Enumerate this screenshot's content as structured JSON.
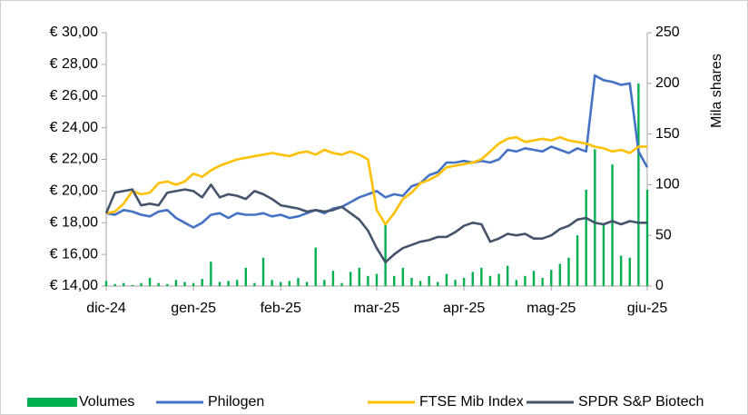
{
  "chart_data": {
    "type": "line",
    "categories": [
      "dic-24",
      null,
      null,
      null,
      null,
      null,
      null,
      null,
      null,
      null,
      "gen-25",
      null,
      null,
      null,
      null,
      null,
      null,
      null,
      null,
      null,
      "feb-25",
      null,
      null,
      null,
      null,
      null,
      null,
      null,
      null,
      null,
      null,
      "mar-25",
      null,
      null,
      null,
      null,
      null,
      null,
      null,
      null,
      null,
      "apr-25",
      null,
      null,
      null,
      null,
      null,
      null,
      null,
      null,
      null,
      "mag-25",
      null,
      null,
      null,
      null,
      null,
      null,
      null,
      null,
      null,
      null,
      "giu-25"
    ],
    "series": [
      {
        "name": "Volumes",
        "type": "bar",
        "axis": "y2",
        "color": "#00b050",
        "values": [
          5,
          2,
          3,
          1,
          3,
          8,
          3,
          2,
          6,
          4,
          3,
          7,
          24,
          4,
          5,
          6,
          18,
          3,
          28,
          6,
          4,
          5,
          8,
          4,
          38,
          6,
          15,
          3,
          14,
          18,
          10,
          12,
          62,
          10,
          18,
          8,
          5,
          10,
          4,
          12,
          6,
          8,
          14,
          18,
          10,
          12,
          20,
          6,
          10,
          15,
          8,
          16,
          22,
          28,
          50,
          95,
          135,
          60,
          120,
          30,
          28,
          200,
          95
        ]
      },
      {
        "name": "Philogen",
        "type": "line",
        "color": "#4472c4",
        "values": [
          18.6,
          18.5,
          18.8,
          18.7,
          18.5,
          18.4,
          18.7,
          18.8,
          18.3,
          18.0,
          17.7,
          18.0,
          18.5,
          18.6,
          18.3,
          18.6,
          18.5,
          18.5,
          18.6,
          18.4,
          18.5,
          18.3,
          18.4,
          18.6,
          18.8,
          18.6,
          18.9,
          19.0,
          19.3,
          19.6,
          19.8,
          20.0,
          19.6,
          19.8,
          19.7,
          20.3,
          20.5,
          21.0,
          21.2,
          21.8,
          21.8,
          21.9,
          21.8,
          21.9,
          21.8,
          22.0,
          22.6,
          22.5,
          22.7,
          22.6,
          22.5,
          22.8,
          22.6,
          22.4,
          22.7,
          22.5,
          27.3,
          27.0,
          26.9,
          26.7,
          26.8,
          22.5,
          21.5
        ]
      },
      {
        "name": "FTSE Mib Index",
        "type": "line",
        "color": "#ffc000",
        "values": [
          18.6,
          18.7,
          19.2,
          20.0,
          19.8,
          19.9,
          20.5,
          20.6,
          20.4,
          20.6,
          21.1,
          20.9,
          21.3,
          21.6,
          21.8,
          22.0,
          22.1,
          22.2,
          22.3,
          22.4,
          22.3,
          22.2,
          22.4,
          22.5,
          22.3,
          22.6,
          22.4,
          22.3,
          22.5,
          22.3,
          22.0,
          18.8,
          17.9,
          18.6,
          19.5,
          19.9,
          20.5,
          20.7,
          21.0,
          21.5,
          21.6,
          21.7,
          21.8,
          22.0,
          22.5,
          23.0,
          23.3,
          23.4,
          23.1,
          23.2,
          23.3,
          23.2,
          23.4,
          23.2,
          23.1,
          23.0,
          22.8,
          22.7,
          22.5,
          22.6,
          22.4,
          22.8,
          22.8
        ]
      },
      {
        "name": "SPDR S&P Biotech",
        "type": "line",
        "color": "#44546a",
        "values": [
          18.6,
          19.9,
          20.0,
          20.1,
          19.1,
          19.2,
          19.1,
          19.9,
          20.0,
          20.1,
          20.0,
          19.6,
          20.4,
          19.6,
          19.8,
          19.7,
          19.5,
          20.0,
          19.8,
          19.5,
          19.1,
          19.0,
          18.9,
          18.7,
          18.8,
          18.7,
          18.8,
          19.0,
          18.6,
          18.2,
          17.5,
          16.4,
          15.5,
          16.0,
          16.4,
          16.6,
          16.8,
          16.9,
          17.1,
          17.1,
          17.4,
          17.8,
          18.0,
          17.9,
          16.8,
          17.0,
          17.3,
          17.2,
          17.3,
          17.0,
          17.0,
          17.2,
          17.6,
          17.8,
          18.2,
          18.3,
          18.0,
          17.9,
          18.1,
          17.9,
          18.1,
          18.0,
          18.0
        ]
      }
    ],
    "ylim": [
      14,
      30
    ],
    "yticks": [
      {
        "value": 14,
        "label": "€ 14,00"
      },
      {
        "value": 16,
        "label": "€ 16,00"
      },
      {
        "value": 18,
        "label": "€ 18,00"
      },
      {
        "value": 20,
        "label": "€ 20,00"
      },
      {
        "value": 22,
        "label": "€ 22,00"
      },
      {
        "value": 24,
        "label": "€ 24,00"
      },
      {
        "value": 26,
        "label": "€ 26,00"
      },
      {
        "value": 28,
        "label": "€ 28,00"
      },
      {
        "value": 30,
        "label": "€ 30,00"
      }
    ],
    "y2lim": [
      0,
      250
    ],
    "y2ticks": [
      0,
      50,
      100,
      150,
      200,
      250
    ],
    "y2label": "Mila shares",
    "grid": false,
    "legend": "bottom"
  }
}
